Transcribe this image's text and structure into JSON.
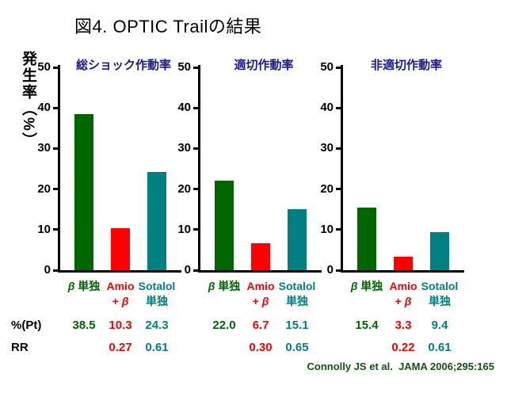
{
  "title": "図4. OPTIC Trailの結果",
  "y_axis_label": "発生率（%）",
  "row_labels": {
    "pct": "%(Pt)",
    "rr": "RR"
  },
  "citation": "Connolly JS et al.  JAMA 2006;295:165",
  "colors": {
    "series": [
      "#006600",
      "#ff0000",
      "#008080"
    ],
    "subtitle": "#1a1a8f",
    "citation": "#164f16",
    "axis": "#000000"
  },
  "axis": {
    "min": 0,
    "max": 50,
    "ticks": [
      50,
      40,
      30,
      20,
      10,
      0
    ]
  },
  "chart_data": [
    {
      "type": "bar",
      "title": "総ショック作動率",
      "categories": [
        "β 単独",
        "Amio + β",
        "Sotalol 単独"
      ],
      "category_lines": [
        [
          "β 単独"
        ],
        [
          "Amio",
          "+ β"
        ],
        [
          "Sotalol",
          "単独"
        ]
      ],
      "values": [
        38.5,
        10.3,
        24.3
      ],
      "values_display": [
        "38.5",
        "10.3",
        "24.3"
      ],
      "rr_display": [
        "",
        "0.27",
        "0.61"
      ],
      "ylabel": "発生率（%）",
      "ylim": [
        0,
        50
      ]
    },
    {
      "type": "bar",
      "title": "適切作動率",
      "categories": [
        "β 単独",
        "Amio + β",
        "Sotalol 単独"
      ],
      "category_lines": [
        [
          "β 単独"
        ],
        [
          "Amio",
          "+ β"
        ],
        [
          "Sotalol",
          "単独"
        ]
      ],
      "values": [
        22.0,
        6.7,
        15.1
      ],
      "values_display": [
        "22.0",
        "6.7",
        "15.1"
      ],
      "rr_display": [
        "",
        "0.30",
        "0.65"
      ],
      "ylabel": "発生率（%）",
      "ylim": [
        0,
        50
      ]
    },
    {
      "type": "bar",
      "title": "非適切作動率",
      "categories": [
        "β 単独",
        "Amio + β",
        "Sotalol 単独"
      ],
      "category_lines": [
        [
          "β 単独"
        ],
        [
          "Amio",
          "+ β"
        ],
        [
          "Sotalol",
          "単独"
        ]
      ],
      "values": [
        15.4,
        3.3,
        9.4
      ],
      "values_display": [
        "15.4",
        "3.3",
        "9.4"
      ],
      "rr_display": [
        "",
        "0.22",
        "0.61"
      ],
      "ylabel": "発生率（%）",
      "ylim": [
        0,
        50
      ]
    }
  ]
}
